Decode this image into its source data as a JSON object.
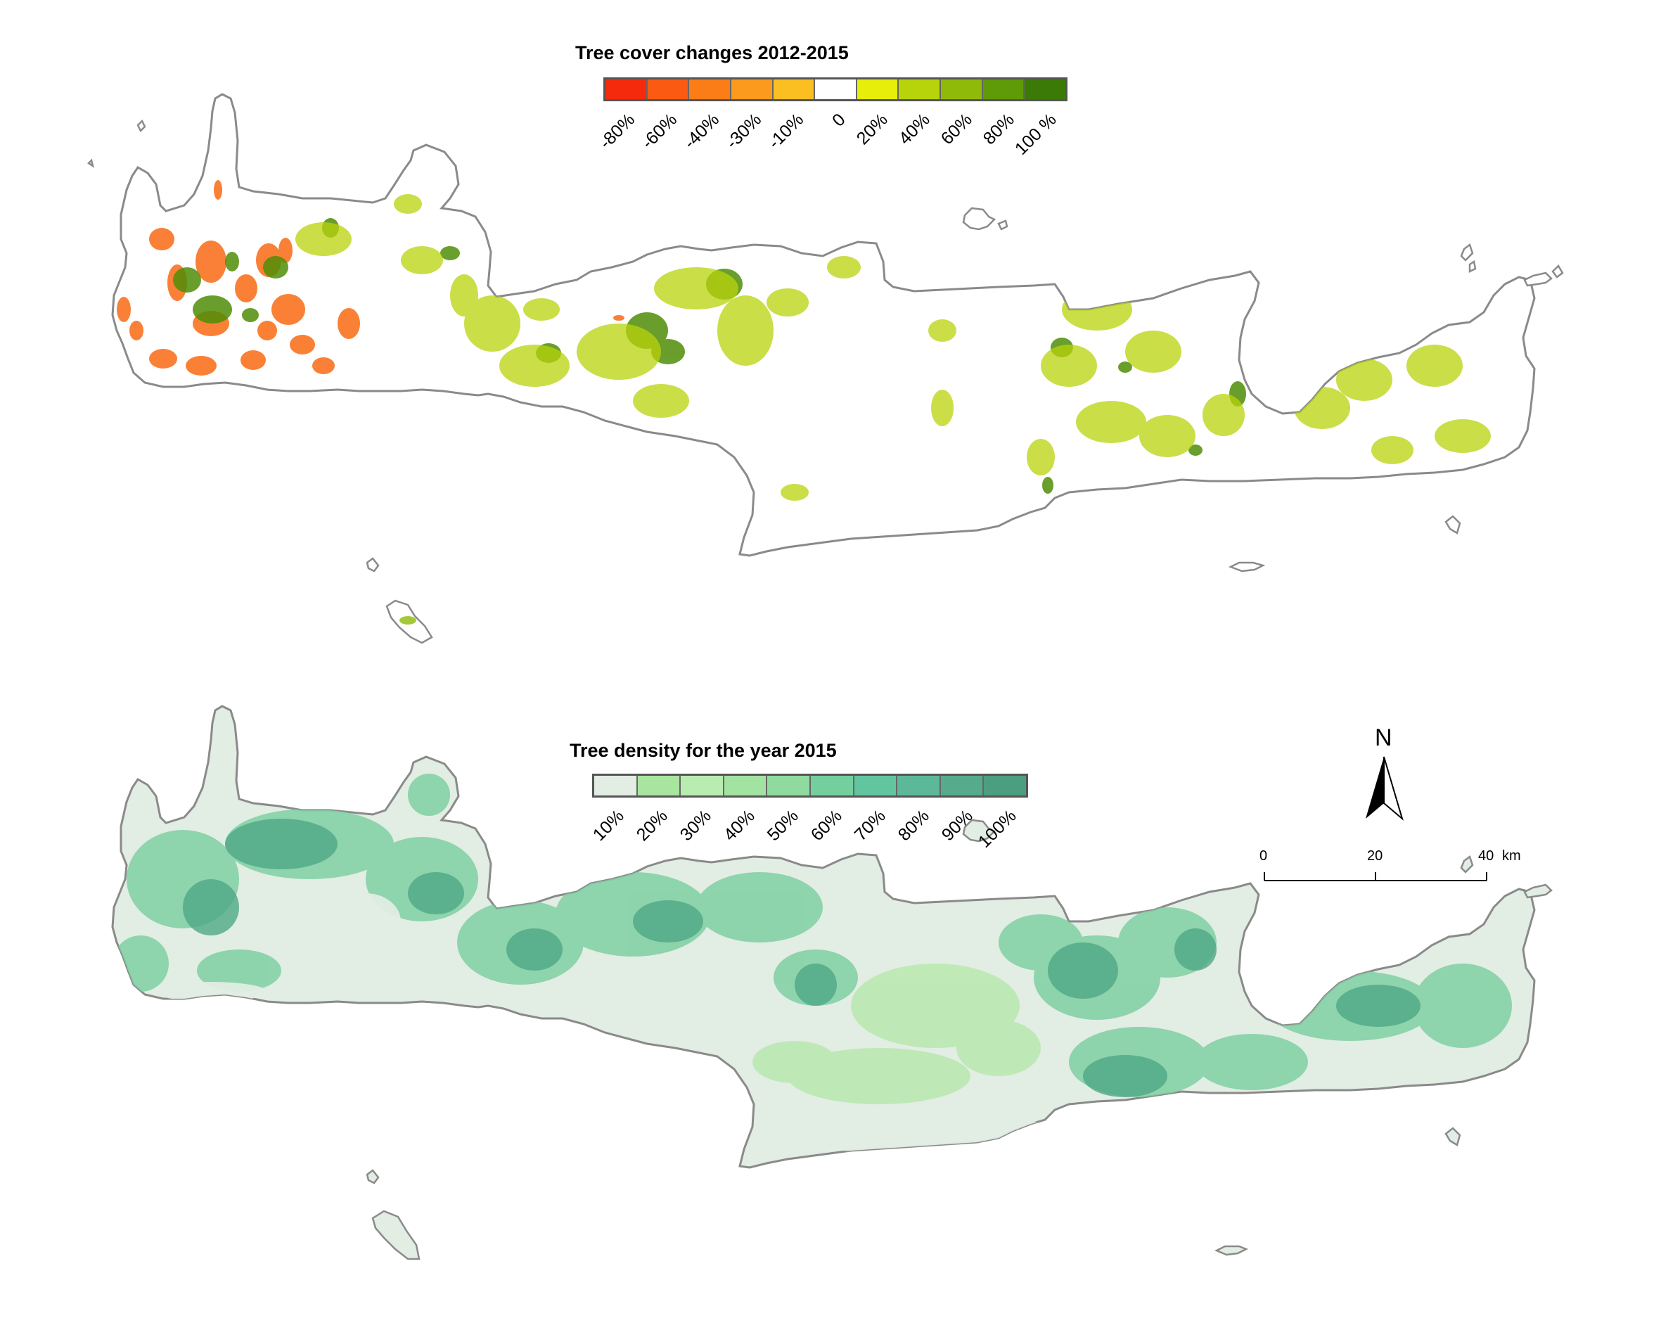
{
  "top_map": {
    "legend_title": "Tree cover changes 2012-2015",
    "classes": [
      {
        "label": "-80%",
        "color": "#f52a0c"
      },
      {
        "label": "-60%",
        "color": "#fa5a12"
      },
      {
        "label": "-40%",
        "color": "#fb7d18"
      },
      {
        "label": "-30%",
        "color": "#fb9a1c"
      },
      {
        "label": "-10%",
        "color": "#fbbf22"
      },
      {
        "label": "0",
        "color": "#ffffff"
      },
      {
        "label": "20%",
        "color": "#e6ee0a"
      },
      {
        "label": "40%",
        "color": "#b7d30a"
      },
      {
        "label": "60%",
        "color": "#8fba0a"
      },
      {
        "label": "80%",
        "color": "#5f9a08"
      },
      {
        "label": "100 %",
        "color": "#3b7a06"
      }
    ]
  },
  "bottom_map": {
    "legend_title": "Tree density for the year 2015",
    "classes": [
      {
        "label": "10%",
        "color": "#e2ede4"
      },
      {
        "label": "20%",
        "color": "#a8e6a0"
      },
      {
        "label": "30%",
        "color": "#b9ecb0"
      },
      {
        "label": "40%",
        "color": "#a3e3a2"
      },
      {
        "label": "50%",
        "color": "#8fdb9f"
      },
      {
        "label": "60%",
        "color": "#74cf9e"
      },
      {
        "label": "70%",
        "color": "#62c5a0"
      },
      {
        "label": "80%",
        "color": "#5bb898"
      },
      {
        "label": "90%",
        "color": "#55ab8c"
      },
      {
        "label": "100%",
        "color": "#4c9e80"
      }
    ]
  },
  "north_arrow": {
    "label": "N"
  },
  "scale_bar": {
    "ticks": [
      "0",
      "20",
      "40"
    ],
    "unit": "km"
  },
  "colors": {
    "coastline": "#8a8a8a",
    "land_top": "#ffffff",
    "land_bottom": "#e2ede4",
    "loss": "#fa6a14",
    "gain_light": "#b9d30a",
    "gain_dark": "#4f8e08",
    "density_mid": "#7fcfa3",
    "density_high": "#4fa886",
    "density_light": "#b6e8aa"
  }
}
